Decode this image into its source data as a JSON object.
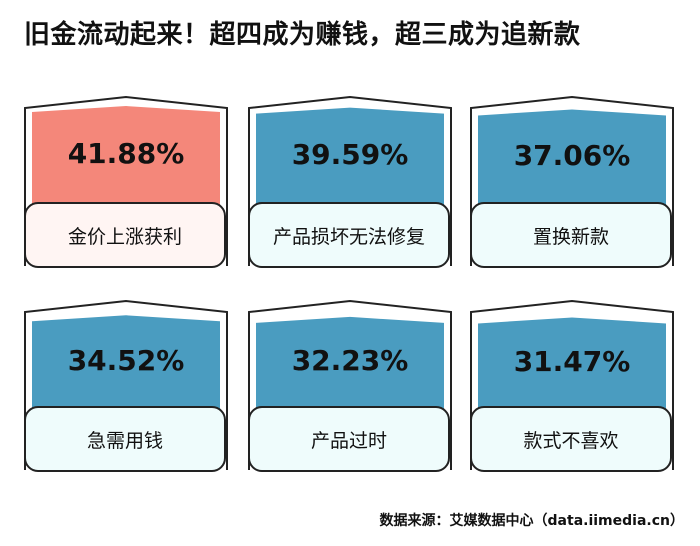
{
  "title": "旧金流动起来！超四成为赚钱，超三成为追新款",
  "source": "数据来源：艾媒数据中心（data.iimedia.cn）",
  "colors": {
    "highlight": "#f4877a",
    "bar": "#4a9cc0",
    "label_bg_highlight": "#fff5f3",
    "label_bg": "#effcfc"
  },
  "chart_data": {
    "type": "bar",
    "categories": [
      "金价上涨获利",
      "产品损坏无法修复",
      "置换新款",
      "急需用钱",
      "产品过时",
      "款式不喜欢"
    ],
    "values": [
      41.88,
      39.59,
      37.06,
      34.52,
      32.23,
      31.47
    ],
    "labels": [
      "41.88%",
      "39.59%",
      "37.06%",
      "34.52%",
      "32.23%",
      "31.47%"
    ],
    "unit": "%",
    "title": "旧金流动起来！超四成为赚钱，超三成为追新款"
  }
}
